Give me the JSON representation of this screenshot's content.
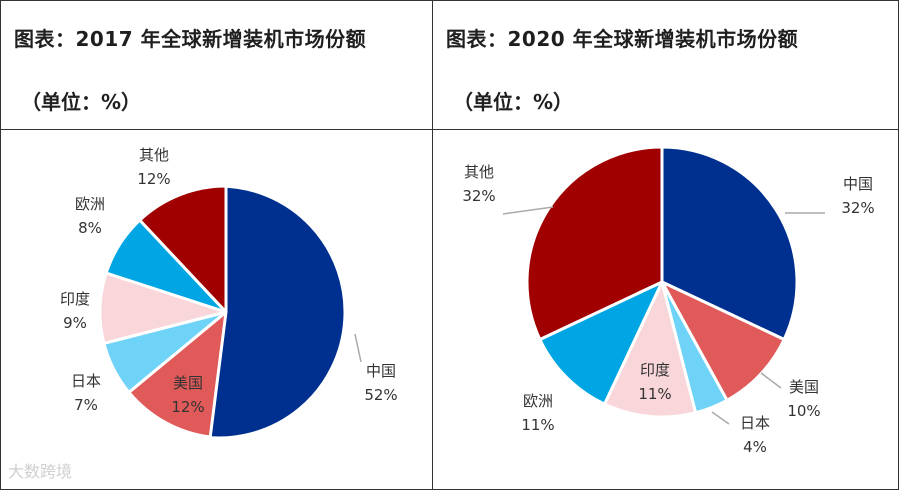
{
  "charts": {
    "left": {
      "title": "图表：2017 年全球新增装机市场份额",
      "unit": "（单位：%）"
    },
    "right": {
      "title": "图表：2020 年全球新增装机市场份额",
      "unit": "（单位：%）"
    }
  },
  "watermark": "大数跨境",
  "chart_data": [
    {
      "type": "pie",
      "title": "图表：2017 年全球新增装机市场份额",
      "subtitle": "（单位：%）",
      "unit": "%",
      "slices": [
        {
          "label": "中国",
          "value": 52,
          "text": "52%",
          "color": "#00308F"
        },
        {
          "label": "美国",
          "value": 12,
          "text": "12%",
          "color": "#E05A5A"
        },
        {
          "label": "日本",
          "value": 7,
          "text": "7%",
          "color": "#6FD3F7"
        },
        {
          "label": "印度",
          "value": 9,
          "text": "9%",
          "color": "#F8D6DA"
        },
        {
          "label": "欧洲",
          "value": 8,
          "text": "8%",
          "color": "#00A5E3"
        },
        {
          "label": "其他",
          "value": 12,
          "text": "12%",
          "color": "#A00000"
        }
      ]
    },
    {
      "type": "pie",
      "title": "图表：2020 年全球新增装机市场份额",
      "subtitle": "（单位：%）",
      "unit": "%",
      "slices": [
        {
          "label": "中国",
          "value": 32,
          "text": "32%",
          "color": "#00308F"
        },
        {
          "label": "美国",
          "value": 10,
          "text": "10%",
          "color": "#E05A5A"
        },
        {
          "label": "日本",
          "value": 4,
          "text": "4%",
          "color": "#6FD3F7"
        },
        {
          "label": "印度",
          "value": 11,
          "text": "11%",
          "color": "#F8D6DA"
        },
        {
          "label": "欧洲",
          "value": 11,
          "text": "11%",
          "color": "#00A5E3"
        },
        {
          "label": "其他",
          "value": 32,
          "text": "32%",
          "color": "#A00000"
        }
      ]
    }
  ]
}
